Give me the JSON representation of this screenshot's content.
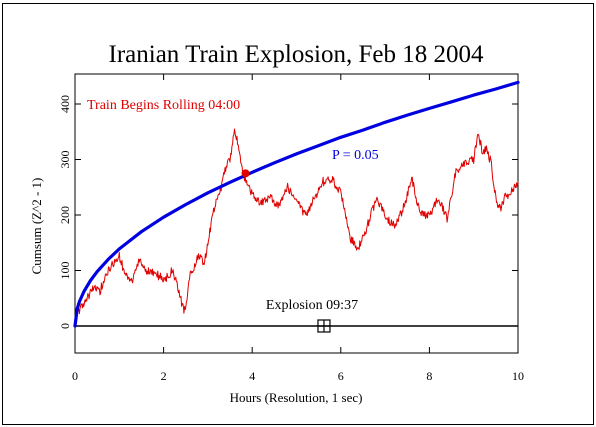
{
  "chart_data": {
    "type": "line",
    "title": "Iranian Train Explosion, Feb 18 2004",
    "xlabel": "Hours (Resolution, 1 sec)",
    "ylabel": "Cumsum (Z^2 - 1)",
    "xlim": [
      0,
      10
    ],
    "ylim": [
      -50,
      460
    ],
    "x_ticks": [
      0,
      2,
      4,
      6,
      8,
      10
    ],
    "y_ticks": [
      0,
      100,
      200,
      300,
      400
    ],
    "grid": false,
    "series": [
      {
        "name": "Cumsum",
        "color": "#e00000",
        "x": [
          0,
          0.1,
          0.25,
          0.4,
          0.55,
          0.7,
          0.85,
          1.0,
          1.15,
          1.3,
          1.45,
          1.6,
          1.75,
          1.9,
          2.05,
          2.2,
          2.35,
          2.45,
          2.5,
          2.6,
          2.7,
          2.8,
          2.9,
          3.0,
          3.1,
          3.2,
          3.3,
          3.4,
          3.5,
          3.6,
          3.7,
          3.8,
          3.9,
          4.0,
          4.2,
          4.4,
          4.6,
          4.8,
          5.0,
          5.2,
          5.4,
          5.6,
          5.8,
          6.0,
          6.2,
          6.4,
          6.6,
          6.8,
          7.0,
          7.2,
          7.4,
          7.6,
          7.8,
          8.0,
          8.2,
          8.4,
          8.6,
          8.8,
          9.0,
          9.1,
          9.2,
          9.3,
          9.4,
          9.5,
          9.6,
          9.7,
          9.8,
          9.9,
          10.0
        ],
        "y": [
          15,
          30,
          45,
          70,
          60,
          95,
          110,
          125,
          90,
          80,
          120,
          100,
          95,
          90,
          85,
          100,
          60,
          30,
          35,
          90,
          105,
          130,
          110,
          145,
          200,
          230,
          250,
          285,
          300,
          355,
          320,
          270,
          250,
          240,
          220,
          235,
          215,
          250,
          225,
          200,
          230,
          260,
          265,
          240,
          160,
          140,
          180,
          230,
          200,
          180,
          210,
          265,
          200,
          200,
          230,
          195,
          280,
          290,
          300,
          350,
          310,
          320,
          290,
          230,
          210,
          230,
          240,
          250,
          260
        ]
      },
      {
        "name": "P = 0.05",
        "color": "#0000e0",
        "x": [
          0,
          0.05,
          0.1,
          0.2,
          0.35,
          0.5,
          0.75,
          1.0,
          1.5,
          2.0,
          2.5,
          3.0,
          3.5,
          4.0,
          4.5,
          5.0,
          5.5,
          6.0,
          6.5,
          7.0,
          7.5,
          8.0,
          8.5,
          9.0,
          9.5,
          10.0
        ],
        "y": [
          0,
          31,
          44,
          62,
          82,
          98,
          120,
          139,
          170,
          196,
          219,
          240,
          259,
          277,
          294,
          310,
          325,
          340,
          353,
          367,
          380,
          392,
          404,
          416,
          427,
          439
        ]
      }
    ],
    "annotations": [
      {
        "text": "Train Begins Rolling 04:00",
        "color": "#e00000"
      },
      {
        "text": "P = 0.05",
        "color": "#0000e0"
      },
      {
        "text": "Explosion 09:37",
        "color": "#000000",
        "marker_x": 5.62,
        "marker_y": 0
      }
    ],
    "highlight_point": {
      "x": 3.85,
      "y": 275,
      "color": "#e00000"
    },
    "zero_line": {
      "y": 0,
      "color": "#000000"
    }
  }
}
